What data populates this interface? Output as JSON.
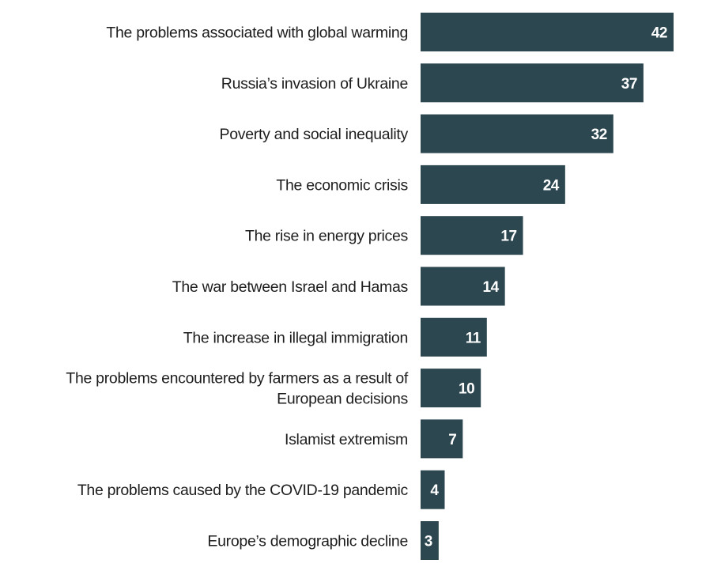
{
  "chart_data": {
    "type": "bar",
    "orientation": "horizontal",
    "title": "",
    "xlabel": "",
    "ylabel": "",
    "xlim": [
      0,
      42
    ],
    "grid": false,
    "bar_color": "#2c4750",
    "value_label_color": "#ffffff",
    "categories": [
      [
        "The problems associated with global warming"
      ],
      [
        "Russia’s invasion of Ukraine"
      ],
      [
        "Poverty and social inequality"
      ],
      [
        "The economic crisis"
      ],
      [
        "The rise in energy prices"
      ],
      [
        "The war between Israel and Hamas"
      ],
      [
        "The increase in illegal immigration"
      ],
      [
        "The problems encountered by farmers as a result of",
        "European decisions"
      ],
      [
        "Islamist extremism"
      ],
      [
        "The problems caused by the COVID-19 pandemic"
      ],
      [
        "Europe’s demographic decline"
      ]
    ],
    "values": [
      42,
      37,
      32,
      24,
      17,
      14,
      11,
      10,
      7,
      4,
      3
    ]
  }
}
